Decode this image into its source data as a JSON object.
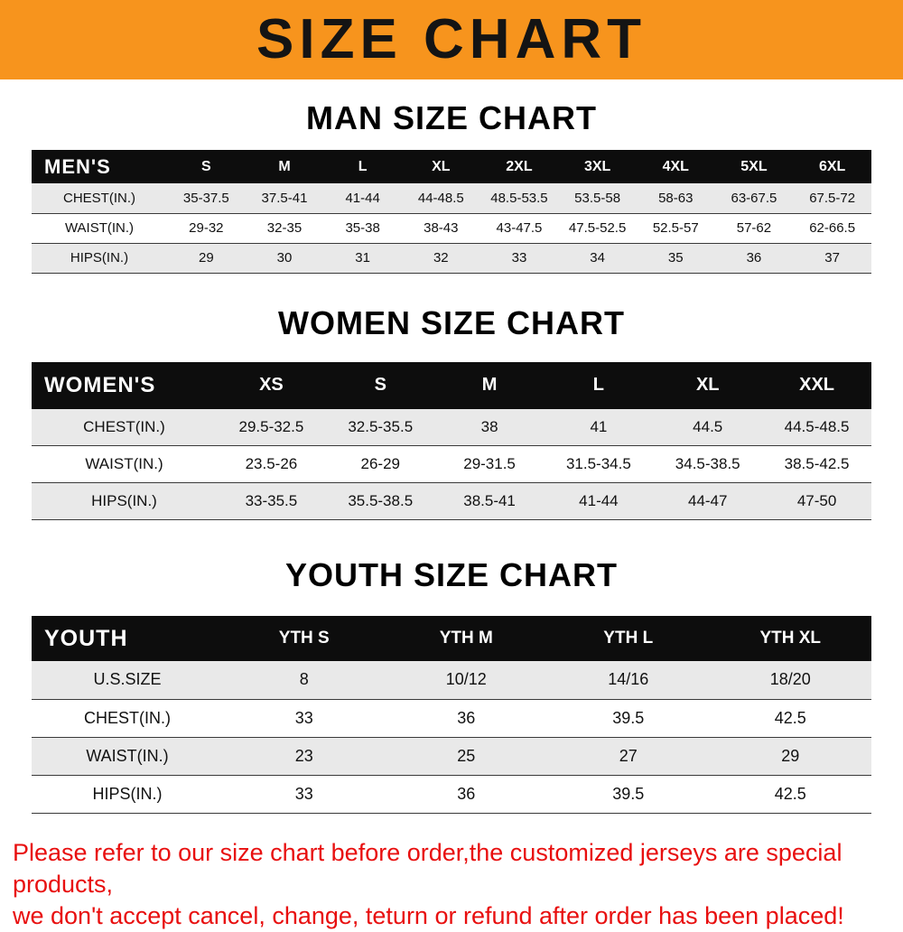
{
  "banner": {
    "title": "SIZE CHART"
  },
  "colors": {
    "banner_bg": "#f7941d",
    "table_header_bg": "#0d0d0d",
    "row_alt_gray": "#e9e9e9",
    "footer_red": "#e80f0f"
  },
  "sections": [
    {
      "heading": "MAN SIZE CHART",
      "table": {
        "corner_label": "MEN'S",
        "columns": [
          "S",
          "M",
          "L",
          "XL",
          "2XL",
          "3XL",
          "4XL",
          "5XL",
          "6XL"
        ],
        "rows": [
          {
            "label": "CHEST(IN.)",
            "values": [
              "35-37.5",
              "37.5-41",
              "41-44",
              "44-48.5",
              "48.5-53.5",
              "53.5-58",
              "58-63",
              "63-67.5",
              "67.5-72"
            ]
          },
          {
            "label": "WAIST(IN.)",
            "values": [
              "29-32",
              "32-35",
              "35-38",
              "38-43",
              "43-47.5",
              "47.5-52.5",
              "52.5-57",
              "57-62",
              "62-66.5"
            ]
          },
          {
            "label": "HIPS(IN.)",
            "values": [
              "29",
              "30",
              "31",
              "32",
              "33",
              "34",
              "35",
              "36",
              "37"
            ]
          }
        ]
      }
    },
    {
      "heading": "WOMEN SIZE CHART",
      "table": {
        "corner_label": "WOMEN'S",
        "columns": [
          "XS",
          "S",
          "M",
          "L",
          "XL",
          "XXL"
        ],
        "rows": [
          {
            "label": "CHEST(IN.)",
            "values": [
              "29.5-32.5",
              "32.5-35.5",
              "38",
              "41",
              "44.5",
              "44.5-48.5"
            ]
          },
          {
            "label": "WAIST(IN.)",
            "values": [
              "23.5-26",
              "26-29",
              "29-31.5",
              "31.5-34.5",
              "34.5-38.5",
              "38.5-42.5"
            ]
          },
          {
            "label": "HIPS(IN.)",
            "values": [
              "33-35.5",
              "35.5-38.5",
              "38.5-41",
              "41-44",
              "44-47",
              "47-50"
            ]
          }
        ]
      }
    },
    {
      "heading": "YOUTH SIZE CHART",
      "table": {
        "corner_label": "YOUTH",
        "columns": [
          "YTH S",
          "YTH M",
          "YTH L",
          "YTH XL"
        ],
        "rows": [
          {
            "label": "U.S.SIZE",
            "values": [
              "8",
              "10/12",
              "14/16",
              "18/20"
            ]
          },
          {
            "label": "CHEST(IN.)",
            "values": [
              "33",
              "36",
              "39.5",
              "42.5"
            ]
          },
          {
            "label": "WAIST(IN.)",
            "values": [
              "23",
              "25",
              "27",
              "29"
            ]
          },
          {
            "label": "HIPS(IN.)",
            "values": [
              "33",
              "36",
              "39.5",
              "42.5"
            ]
          }
        ]
      }
    }
  ],
  "footer": {
    "lines": [
      "Please refer to our size chart before order,the customized jerseys are special products,",
      "we don't accept cancel, change, teturn or refund after order has been placed!"
    ]
  }
}
